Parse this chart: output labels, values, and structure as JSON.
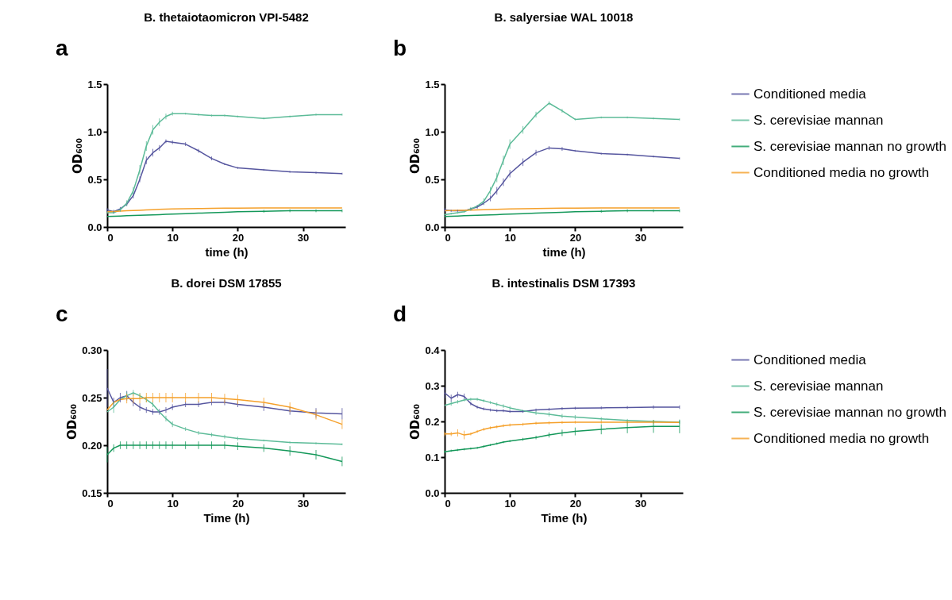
{
  "chart_data": [
    {
      "type": "line",
      "title": "B. thetaiotaomicron VPI-5482",
      "xlabel": "time (h)",
      "ylabel": "OD₆₀₀",
      "annotations": [
        "a"
      ],
      "x": [
        0,
        1,
        2,
        3,
        4,
        5,
        6,
        7,
        8,
        9,
        10,
        12,
        14,
        16,
        18,
        20,
        24,
        28,
        32,
        36
      ],
      "xlim": [
        0,
        36.5
      ],
      "xticks": [
        0,
        10,
        20,
        30
      ],
      "ylim": [
        0,
        1.5
      ],
      "yticks": [
        {
          "value": 0,
          "label": "0.0"
        },
        0.5,
        {
          "value": 1,
          "label": "1.0"
        },
        1.5
      ],
      "grid": false,
      "legend": false,
      "marker": "none",
      "line_style": "solid",
      "series": [
        {
          "color": "#56569f",
          "values": [
            0.18,
            0.16,
            0.19,
            0.24,
            0.33,
            0.5,
            0.7,
            0.78,
            0.83,
            0.9,
            0.89,
            0.87,
            0.8,
            0.72,
            0.66,
            0.62,
            0.6,
            0.58,
            0.57,
            0.56
          ],
          "errors": [
            0.02,
            0.02,
            0.02,
            0.02,
            0.03,
            0.03,
            0.04,
            0.04,
            0.03,
            0.02,
            0.02,
            0.02,
            0.02,
            0.02,
            0.01,
            0.01,
            0.01,
            0.01,
            0.01,
            0.01
          ]
        },
        {
          "color": "#5cbb98",
          "values": [
            0.15,
            0.15,
            0.18,
            0.25,
            0.38,
            0.6,
            0.85,
            1.02,
            1.1,
            1.16,
            1.19,
            1.19,
            1.18,
            1.17,
            1.17,
            1.16,
            1.14,
            1.16,
            1.18,
            1.18
          ],
          "errors": [
            0.01,
            0.01,
            0.02,
            0.03,
            0.04,
            0.05,
            0.05,
            0.05,
            0.04,
            0.03,
            0.02,
            0.01,
            0.01,
            0.01,
            0.01,
            0.01,
            0.01,
            0.01,
            0.01,
            0.01
          ]
        },
        {
          "color": "#14985a",
          "values": [
            0.11,
            0.112,
            0.115,
            0.118,
            0.12,
            0.122,
            0.125,
            0.128,
            0.13,
            0.133,
            0.135,
            0.14,
            0.145,
            0.15,
            0.155,
            0.16,
            0.165,
            0.17,
            0.17,
            0.17
          ],
          "errors": [
            null,
            null,
            null,
            null,
            null,
            null,
            null,
            null,
            null,
            null,
            null,
            null,
            null,
            null,
            null,
            null,
            0.015,
            0.015,
            0.015,
            0.015
          ]
        },
        {
          "color": "#f5a02a",
          "values": [
            0.16,
            0.163,
            0.167,
            0.17,
            0.173,
            0.176,
            0.179,
            0.182,
            0.185,
            0.188,
            0.19,
            0.192,
            0.194,
            0.196,
            0.197,
            0.198,
            0.199,
            0.2,
            0.2,
            0.2
          ]
        }
      ]
    },
    {
      "type": "line",
      "title": "B. salyersiae WAL 10018",
      "xlabel": "time (h)",
      "ylabel": "OD₆₀₀",
      "annotations": [
        "b"
      ],
      "x": [
        0,
        1,
        2,
        3,
        4,
        5,
        6,
        7,
        8,
        9,
        10,
        12,
        14,
        16,
        18,
        20,
        24,
        28,
        32,
        36
      ],
      "xlim": [
        0,
        36.5
      ],
      "xticks": [
        0,
        10,
        20,
        30
      ],
      "ylim": [
        0,
        1.5
      ],
      "yticks": [
        {
          "value": 0,
          "label": "0.0"
        },
        0.5,
        {
          "value": 1,
          "label": "1.0"
        },
        1.5
      ],
      "grid": false,
      "legend": "right",
      "marker": "none",
      "line_style": "solid",
      "series": [
        {
          "name": "Conditioned media",
          "color": "#56569f",
          "values": [
            0.18,
            0.17,
            0.17,
            0.17,
            0.19,
            0.21,
            0.25,
            0.3,
            0.38,
            0.47,
            0.56,
            0.68,
            0.78,
            0.83,
            0.82,
            0.8,
            0.77,
            0.76,
            0.74,
            0.72
          ],
          "errors": [
            0.02,
            0.01,
            0.01,
            null,
            0.01,
            0.02,
            0.02,
            0.03,
            0.04,
            0.04,
            0.04,
            0.04,
            0.03,
            0.02,
            0.02,
            0.01,
            0.01,
            0.01,
            0.01,
            0.01
          ]
        },
        {
          "name": "S. cerevisiae mannan",
          "color": "#5cbb98",
          "values": [
            0.13,
            0.14,
            0.15,
            0.16,
            0.19,
            0.22,
            0.27,
            0.38,
            0.52,
            0.7,
            0.87,
            1.02,
            1.18,
            1.3,
            1.22,
            1.13,
            1.15,
            1.15,
            1.14,
            1.13
          ],
          "errors": [
            0.01,
            0.01,
            0.01,
            0.01,
            0.02,
            null,
            0.03,
            0.04,
            0.05,
            0.05,
            0.05,
            0.04,
            0.03,
            0.02,
            0.02,
            0.01,
            0.01,
            0.01,
            0.01,
            0.01
          ]
        },
        {
          "name": "S. cerevisiae mannan no growth",
          "color": "#14985a",
          "values": [
            0.11,
            0.112,
            0.115,
            0.118,
            0.12,
            0.122,
            0.125,
            0.128,
            0.13,
            0.133,
            0.135,
            0.14,
            0.145,
            0.15,
            0.155,
            0.16,
            0.165,
            0.17,
            0.17,
            0.17
          ],
          "errors": [
            null,
            null,
            null,
            null,
            null,
            null,
            null,
            null,
            null,
            null,
            null,
            null,
            null,
            null,
            null,
            null,
            0.015,
            0.015,
            0.015,
            0.015
          ]
        },
        {
          "name": "Conditioned media no growth",
          "color": "#f5a02a",
          "values": [
            0.17,
            0.172,
            0.174,
            0.176,
            0.178,
            0.18,
            0.182,
            0.184,
            0.186,
            0.188,
            0.19,
            0.192,
            0.194,
            0.196,
            0.197,
            0.198,
            0.199,
            0.2,
            0.2,
            0.2
          ]
        }
      ]
    },
    {
      "type": "line",
      "title": "B. dorei DSM 17855",
      "xlabel": "Time (h)",
      "ylabel": "OD₆₀₀",
      "annotations": [
        "c"
      ],
      "x": [
        0,
        1,
        2,
        3,
        4,
        5,
        6,
        7,
        8,
        9,
        10,
        12,
        14,
        16,
        18,
        20,
        24,
        28,
        32,
        36
      ],
      "xlim": [
        0,
        36.5
      ],
      "xticks": [
        0,
        10,
        20,
        30
      ],
      "ylim": [
        0.15,
        0.3
      ],
      "yticks": [
        0.15,
        {
          "value": 0.2,
          "label": "0.20"
        },
        0.25,
        {
          "value": 0.3,
          "label": "0.30"
        }
      ],
      "grid": false,
      "legend": false,
      "marker": "none",
      "line_style": "solid",
      "series": [
        {
          "color": "#56569f",
          "values": [
            0.26,
            0.245,
            0.25,
            0.252,
            0.245,
            0.24,
            0.237,
            0.235,
            0.235,
            0.237,
            0.24,
            0.243,
            0.243,
            0.245,
            0.245,
            0.243,
            0.24,
            0.236,
            0.234,
            0.233
          ],
          "errors": [
            0.02,
            0.005,
            0.005,
            0.005,
            0.004,
            0.004,
            0.003,
            0.003,
            0.003,
            0.003,
            0.003,
            0.003,
            0.003,
            0.003,
            0.003,
            0.003,
            0.004,
            0.004,
            0.005,
            0.006
          ]
        },
        {
          "color": "#5cbb98",
          "values": [
            0.235,
            0.24,
            0.248,
            0.252,
            0.255,
            0.252,
            0.248,
            0.243,
            0.235,
            0.228,
            0.222,
            0.217,
            0.213,
            0.211,
            0.209,
            0.207,
            0.205,
            0.203,
            0.202,
            0.201
          ],
          "errors": [
            null,
            0.006,
            null,
            0.004,
            0.003,
            0.003,
            0.003,
            0.003,
            null,
            0.003,
            0.003,
            0.002,
            0.002,
            0.002,
            0.002,
            0.002,
            0.001,
            0.001,
            0.001,
            0.001
          ]
        },
        {
          "color": "#14985a",
          "values": [
            0.19,
            0.197,
            0.2,
            0.2,
            0.2,
            0.2,
            0.2,
            0.2,
            0.2,
            0.2,
            0.2,
            0.2,
            0.2,
            0.2,
            0.2,
            0.199,
            0.197,
            0.194,
            0.19,
            0.183
          ],
          "errors": [
            0.008,
            0.004,
            0.004,
            0.004,
            0.004,
            0.004,
            0.004,
            0.004,
            0.004,
            0.004,
            0.004,
            0.004,
            0.004,
            0.004,
            0.004,
            0.004,
            0.004,
            0.005,
            0.005,
            0.005
          ]
        },
        {
          "color": "#f5a02a",
          "values": [
            0.237,
            0.245,
            0.248,
            0.249,
            0.249,
            0.249,
            0.25,
            0.25,
            0.25,
            0.25,
            0.25,
            0.25,
            0.25,
            0.25,
            0.249,
            0.248,
            0.245,
            0.24,
            0.232,
            0.222
          ],
          "errors": [
            null,
            null,
            null,
            0.005,
            0.005,
            0.005,
            0.005,
            0.005,
            0.005,
            0.005,
            0.005,
            0.005,
            0.005,
            0.005,
            0.005,
            0.005,
            0.005,
            0.005,
            0.005,
            0.005
          ]
        }
      ]
    },
    {
      "type": "line",
      "title": "B. intestinalis DSM 17393",
      "xlabel": "Time (h)",
      "ylabel": "OD₆₀₀",
      "annotations": [
        "d"
      ],
      "x": [
        0,
        1,
        2,
        3,
        4,
        5,
        6,
        7,
        8,
        9,
        10,
        12,
        14,
        16,
        18,
        20,
        24,
        28,
        32,
        36
      ],
      "xlim": [
        0,
        36.5
      ],
      "xticks": [
        0,
        10,
        20,
        30
      ],
      "ylim": [
        0,
        0.4
      ],
      "yticks": [
        {
          "value": 0,
          "label": "0.0"
        },
        0.1,
        0.2,
        0.3,
        0.4
      ],
      "grid": false,
      "legend": "right",
      "marker": "none",
      "line_style": "solid",
      "series": [
        {
          "name": "Conditioned media",
          "color": "#56569f",
          "values": [
            0.28,
            0.265,
            0.275,
            0.27,
            0.25,
            0.24,
            0.235,
            0.232,
            0.23,
            0.23,
            0.228,
            0.228,
            0.232,
            0.234,
            0.236,
            0.237,
            0.238,
            0.239,
            0.24,
            0.24
          ],
          "errors": [
            0.015,
            0.01,
            0.008,
            0.008,
            0.005,
            0.004,
            0.004,
            0.004,
            0.004,
            0.004,
            0.004,
            0.004,
            0.004,
            0.004,
            0.004,
            0.004,
            0.004,
            0.004,
            0.005,
            0.005
          ]
        },
        {
          "name": "S. cerevisiae mannan",
          "color": "#5cbb98",
          "values": [
            0.245,
            0.25,
            0.255,
            0.26,
            0.262,
            0.262,
            0.258,
            0.253,
            0.248,
            0.243,
            0.238,
            0.23,
            0.224,
            0.22,
            0.215,
            0.212,
            0.207,
            0.203,
            0.2,
            0.198
          ],
          "errors": [
            null,
            0.006,
            0.005,
            0.004,
            0.004,
            0.004,
            0.004,
            0.004,
            0.005,
            0.005,
            0.005,
            null,
            0.006,
            0.006,
            0.006,
            0.006,
            0.005,
            0.004,
            0.004,
            0.004
          ]
        },
        {
          "name": "S. cerevisiae mannan no growth",
          "color": "#14985a",
          "values": [
            0.115,
            0.118,
            0.12,
            0.122,
            0.124,
            0.126,
            0.13,
            0.134,
            0.138,
            0.142,
            0.145,
            0.15,
            0.155,
            0.162,
            0.168,
            0.172,
            0.178,
            0.183,
            0.186,
            0.186
          ],
          "errors": [
            0.004,
            0.003,
            0.003,
            0.003,
            0.003,
            0.003,
            0.003,
            0.003,
            0.003,
            0.003,
            0.003,
            0.004,
            0.005,
            0.007,
            0.009,
            0.011,
            0.014,
            0.016,
            0.018,
            0.019
          ]
        },
        {
          "name": "Conditioned media no growth",
          "color": "#f5a02a",
          "values": [
            0.165,
            0.165,
            0.168,
            0.162,
            0.165,
            0.172,
            0.178,
            0.182,
            0.185,
            0.188,
            0.19,
            0.192,
            0.195,
            0.196,
            0.197,
            0.198,
            0.198,
            0.198,
            0.198,
            0.197
          ],
          "errors": [
            0.006,
            0.006,
            0.01,
            0.012,
            0.004,
            0.004,
            0.004,
            0.004,
            0.004,
            0.004,
            0.004,
            0.004,
            0.004,
            0.004,
            0.004,
            0.004,
            0.004,
            0.004,
            0.005,
            null
          ]
        }
      ]
    }
  ]
}
